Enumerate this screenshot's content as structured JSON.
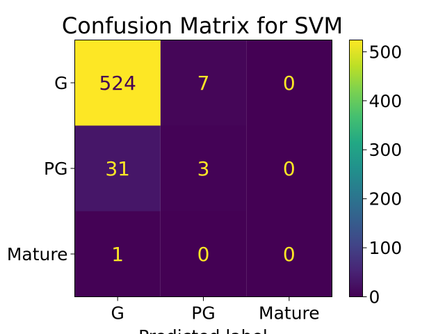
{
  "chart_data": {
    "type": "heatmap",
    "title": "Confusion Matrix for SVM",
    "xlabel": "Predicted label",
    "ylabel": "",
    "x_categories": [
      "G",
      "PG",
      "Mature"
    ],
    "y_categories": [
      "G",
      "PG",
      "Mature"
    ],
    "values": [
      [
        524,
        7,
        0
      ],
      [
        31,
        3,
        0
      ],
      [
        1,
        0,
        0
      ]
    ],
    "colormap": "viridis",
    "vmin": 0,
    "vmax": 524,
    "colorbar_ticks": [
      0,
      100,
      200,
      300,
      400,
      500
    ],
    "colorbar_tick_labels": [
      "0",
      "100",
      "200",
      "300",
      "400",
      "500"
    ],
    "grid": false
  }
}
